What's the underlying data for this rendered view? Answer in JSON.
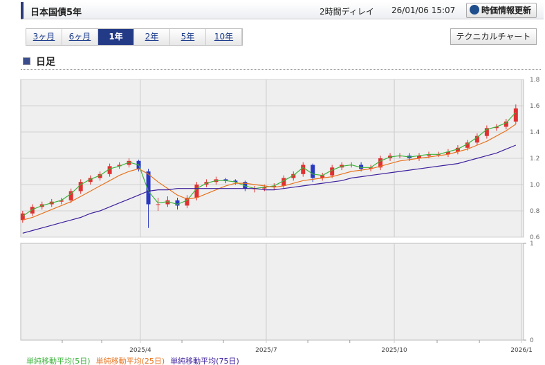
{
  "header": {
    "title": "日本国債5年",
    "delay": "2時間ディレイ",
    "datetime": "26/01/06 15:07",
    "refresh_button": "時価情報更新"
  },
  "tabs": [
    {
      "label": "3ヶ月",
      "active": false
    },
    {
      "label": "6ヶ月",
      "active": false
    },
    {
      "label": "1年",
      "active": true
    },
    {
      "label": "2年",
      "active": false
    },
    {
      "label": "5年",
      "active": false
    },
    {
      "label": "10年",
      "active": false
    }
  ],
  "technical_button": "テクニカルチャート",
  "section_title": "日足",
  "chart_data": {
    "type": "candlestick",
    "xlim": [
      -0.2,
      51.8
    ],
    "xticks": [
      {
        "value": 12.17,
        "label": "2025/4"
      },
      {
        "value": 25.19,
        "label": "2025/7"
      },
      {
        "value": 38.43,
        "label": "2025/10"
      },
      {
        "value": 51.59,
        "label": "2026/1"
      }
    ],
    "minor_xticks": [
      4.09,
      8.17,
      16.47,
      20.76,
      29.49,
      33.83,
      42.86,
      47.23
    ],
    "ylim": [
      0.6,
      1.8
    ],
    "yticks": [
      0.6,
      0.8,
      {
        "value": 1,
        "label": "1.0"
      },
      1.2,
      1.4,
      1.6,
      1.8
    ],
    "volume_ylim": [
      0,
      1
    ],
    "volume_yticks": [
      0,
      1
    ],
    "grid": true,
    "up_color": "#e03030",
    "down_color": "#2838c0",
    "open": [
      0.73,
      0.78,
      0.83,
      0.85,
      0.87,
      0.88,
      0.95,
      1.02,
      1.05,
      1.08,
      1.14,
      1.15,
      1.18,
      1.1,
      0.85,
      0.85,
      0.88,
      0.84,
      0.9,
      1.0,
      1.02,
      1.04,
      1.03,
      1.02,
      0.97,
      0.97,
      0.98,
      0.99,
      1.05,
      1.08,
      1.15,
      1.05,
      1.07,
      1.13,
      1.15,
      1.15,
      1.12,
      1.13,
      1.2,
      1.22,
      1.22,
      1.2,
      1.22,
      1.23,
      1.23,
      1.25,
      1.28,
      1.32,
      1.37,
      1.43,
      1.44,
      1.48
    ],
    "high": [
      0.8,
      0.85,
      0.87,
      0.89,
      0.9,
      0.97,
      1.04,
      1.07,
      1.1,
      1.16,
      1.17,
      1.2,
      1.19,
      1.12,
      0.9,
      0.91,
      0.9,
      0.92,
      1.02,
      1.04,
      1.06,
      1.05,
      1.04,
      1.03,
      0.99,
      1.0,
      1.01,
      1.07,
      1.1,
      1.17,
      1.16,
      1.09,
      1.15,
      1.17,
      1.17,
      1.17,
      1.15,
      1.22,
      1.24,
      1.24,
      1.24,
      1.24,
      1.25,
      1.25,
      1.27,
      1.3,
      1.34,
      1.39,
      1.45,
      1.46,
      1.5,
      1.61
    ],
    "low": [
      0.71,
      0.76,
      0.81,
      0.83,
      0.85,
      0.86,
      0.93,
      1.0,
      1.03,
      1.06,
      1.12,
      1.13,
      1.1,
      0.67,
      0.8,
      0.83,
      0.81,
      0.82,
      0.88,
      0.98,
      1.0,
      1.01,
      1.0,
      0.95,
      0.94,
      0.95,
      0.96,
      0.97,
      1.03,
      1.06,
      1.02,
      1.03,
      1.05,
      1.11,
      1.13,
      1.1,
      1.1,
      1.11,
      1.18,
      1.2,
      1.18,
      1.18,
      1.2,
      1.21,
      1.21,
      1.23,
      1.26,
      1.3,
      1.35,
      1.41,
      1.42,
      1.46
    ],
    "close": [
      0.78,
      0.83,
      0.85,
      0.87,
      0.88,
      0.95,
      1.02,
      1.05,
      1.08,
      1.14,
      1.15,
      1.18,
      1.12,
      0.85,
      0.85,
      0.88,
      0.84,
      0.9,
      1.0,
      1.02,
      1.04,
      1.03,
      1.02,
      0.97,
      0.97,
      0.98,
      0.99,
      1.05,
      1.08,
      1.15,
      1.05,
      1.07,
      1.13,
      1.15,
      1.15,
      1.12,
      1.13,
      1.2,
      1.22,
      1.22,
      1.2,
      1.22,
      1.23,
      1.23,
      1.25,
      1.28,
      1.32,
      1.37,
      1.43,
      1.44,
      1.48,
      1.58
    ],
    "series": [
      {
        "name": "単純移動平均(5日)",
        "color": "#3cb43c",
        "values": [
          0.76,
          0.81,
          0.84,
          0.86,
          0.88,
          0.93,
          1.0,
          1.04,
          1.07,
          1.12,
          1.14,
          1.17,
          1.15,
          0.95,
          0.86,
          0.87,
          0.85,
          0.88,
          0.97,
          1.01,
          1.03,
          1.03,
          1.02,
          0.99,
          0.97,
          0.98,
          0.99,
          1.03,
          1.07,
          1.13,
          1.08,
          1.07,
          1.11,
          1.14,
          1.15,
          1.13,
          1.13,
          1.18,
          1.21,
          1.22,
          1.21,
          1.22,
          1.23,
          1.23,
          1.25,
          1.27,
          1.31,
          1.36,
          1.42,
          1.44,
          1.47,
          1.55
        ]
      },
      {
        "name": "単純移動平均(25日)",
        "color": "#e8731e",
        "values": [
          0.73,
          0.75,
          0.78,
          0.81,
          0.84,
          0.87,
          0.91,
          0.95,
          0.99,
          1.03,
          1.07,
          1.1,
          1.12,
          1.08,
          1.02,
          0.97,
          0.92,
          0.89,
          0.9,
          0.93,
          0.96,
          0.99,
          1.01,
          1.01,
          1.0,
          0.99,
          0.98,
          0.99,
          1.01,
          1.03,
          1.04,
          1.05,
          1.06,
          1.08,
          1.1,
          1.11,
          1.12,
          1.14,
          1.16,
          1.18,
          1.19,
          1.2,
          1.21,
          1.22,
          1.23,
          1.25,
          1.27,
          1.3,
          1.33,
          1.37,
          1.41,
          1.46
        ]
      },
      {
        "name": "単純移動平均(75日)",
        "color": "#3c1e9c",
        "values": [
          0.63,
          0.65,
          0.67,
          0.69,
          0.71,
          0.73,
          0.75,
          0.78,
          0.8,
          0.83,
          0.86,
          0.89,
          0.92,
          0.95,
          0.96,
          0.96,
          0.97,
          0.97,
          0.97,
          0.97,
          0.97,
          0.97,
          0.97,
          0.97,
          0.97,
          0.96,
          0.96,
          0.97,
          0.98,
          0.99,
          1.0,
          1.01,
          1.02,
          1.03,
          1.05,
          1.06,
          1.07,
          1.08,
          1.09,
          1.1,
          1.11,
          1.12,
          1.13,
          1.14,
          1.15,
          1.16,
          1.18,
          1.2,
          1.22,
          1.24,
          1.27,
          1.3
        ]
      }
    ]
  }
}
